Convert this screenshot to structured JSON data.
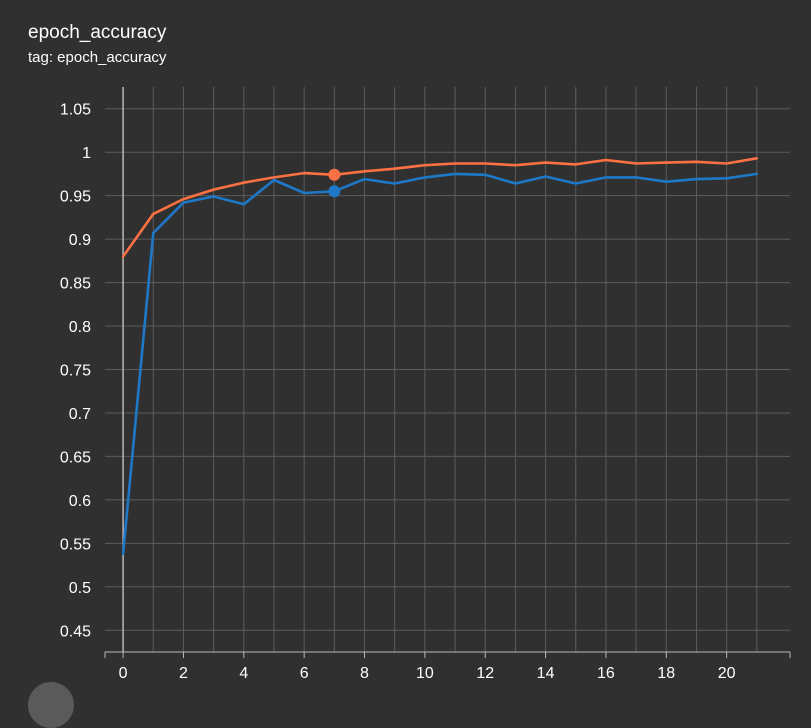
{
  "card": {
    "title": "epoch_accuracy",
    "subtitle": "tag: epoch_accuracy"
  },
  "colors": {
    "background": "#303030",
    "grid": "#5c5c5c",
    "axis": "#b8b8b8",
    "tick_text": "#ffffff"
  },
  "chart_data": {
    "type": "line",
    "xlim": [
      -0.6,
      22.1
    ],
    "ylim": [
      0.425,
      1.075
    ],
    "xticks": [
      0,
      2,
      4,
      6,
      8,
      10,
      12,
      14,
      16,
      18,
      20
    ],
    "yticks": [
      0.45,
      0.5,
      0.55,
      0.6,
      0.65,
      0.7,
      0.75,
      0.8,
      0.85,
      0.9,
      0.95,
      1,
      1.05
    ],
    "ytick_labels": [
      "0.45",
      "0.5",
      "0.55",
      "0.6",
      "0.65",
      "0.7",
      "0.75",
      "0.8",
      "0.85",
      "0.9",
      "0.95",
      "1",
      "1.05"
    ],
    "grid": true,
    "highlight_x": 7,
    "series": [
      {
        "color": "#ff7043",
        "x": [
          0,
          1,
          2,
          3,
          4,
          5,
          6,
          7,
          8,
          9,
          10,
          11,
          12,
          13,
          14,
          15,
          16,
          17,
          18,
          19,
          20,
          21
        ],
        "values": [
          0.88,
          0.929,
          0.946,
          0.957,
          0.965,
          0.971,
          0.976,
          0.974,
          0.978,
          0.981,
          0.985,
          0.987,
          0.987,
          0.985,
          0.988,
          0.986,
          0.991,
          0.987,
          0.988,
          0.989,
          0.987,
          0.993
        ]
      },
      {
        "color": "#1e78c8",
        "x": [
          0,
          1,
          2,
          3,
          4,
          5,
          6,
          7,
          8,
          9,
          10,
          11,
          12,
          13,
          14,
          15,
          16,
          17,
          18,
          19,
          20,
          21
        ],
        "values": [
          0.538,
          0.907,
          0.942,
          0.949,
          0.94,
          0.968,
          0.953,
          0.955,
          0.969,
          0.964,
          0.971,
          0.975,
          0.974,
          0.964,
          0.972,
          0.964,
          0.971,
          0.971,
          0.966,
          0.969,
          0.97,
          0.975
        ]
      }
    ]
  }
}
